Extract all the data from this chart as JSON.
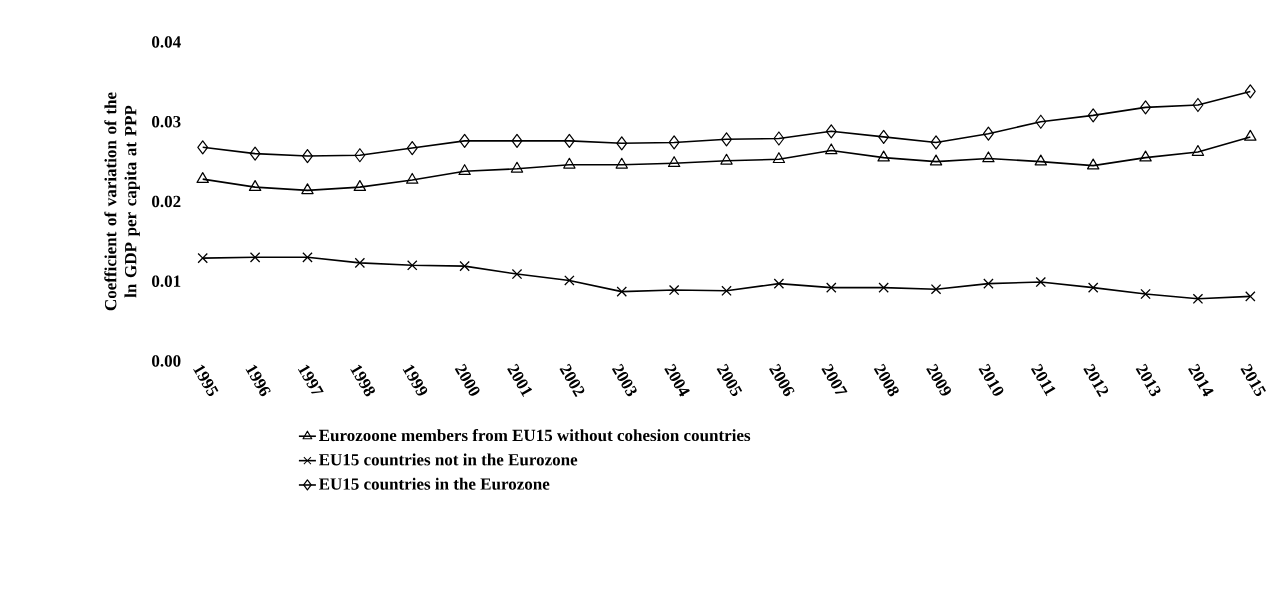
{
  "chart_data": {
    "type": "line",
    "ylabel": "Coefficient of variation of the ln GDP per capita at PPP",
    "categories": [
      "1995",
      "1996",
      "1997",
      "1998",
      "1999",
      "2000",
      "2001",
      "2002",
      "2003",
      "2004",
      "2005",
      "2006",
      "2007",
      "2008",
      "2009",
      "2010",
      "2011",
      "2012",
      "2013",
      "2014",
      "2015"
    ],
    "ylim": [
      0,
      0.04
    ],
    "yticks": [
      {
        "value": 0,
        "label": "0.00"
      },
      {
        "value": 0.01,
        "label": "0.01"
      },
      {
        "value": 0.02,
        "label": "0.02"
      },
      {
        "value": 0.03,
        "label": "0.03"
      },
      {
        "value": 0.04,
        "label": "0.04"
      }
    ],
    "grid": false,
    "legend": "bottom",
    "series": [
      {
        "name": "Eurozoone members from EU15 without cohesion countries",
        "color": "#000000",
        "marker": "triangle",
        "values": [
          0.0228,
          0.0218,
          0.0214,
          0.0218,
          0.0227,
          0.0238,
          0.0241,
          0.0246,
          0.0246,
          0.0248,
          0.0251,
          0.0253,
          0.0264,
          0.0255,
          0.025,
          0.0254,
          0.025,
          0.0245,
          0.0255,
          0.0262,
          0.0281
        ]
      },
      {
        "name": "EU15 countries not in the Eurozone",
        "color": "#000000",
        "marker": "cross",
        "values": [
          0.0129,
          0.013,
          0.013,
          0.0123,
          0.012,
          0.0119,
          0.0109,
          0.0101,
          0.0087,
          0.0089,
          0.0088,
          0.0097,
          0.0092,
          0.0092,
          0.009,
          0.0097,
          0.0099,
          0.0092,
          0.0084,
          0.0078,
          0.0081
        ]
      },
      {
        "name": "EU15 countries in the Eurozone",
        "color": "#000000",
        "marker": "diamond",
        "values": [
          0.0268,
          0.026,
          0.0257,
          0.0258,
          0.0267,
          0.0276,
          0.0276,
          0.0276,
          0.0273,
          0.0274,
          0.0278,
          0.0279,
          0.0288,
          0.0281,
          0.0274,
          0.0285,
          0.03,
          0.0308,
          0.0318,
          0.0321,
          0.0338
        ]
      }
    ]
  }
}
